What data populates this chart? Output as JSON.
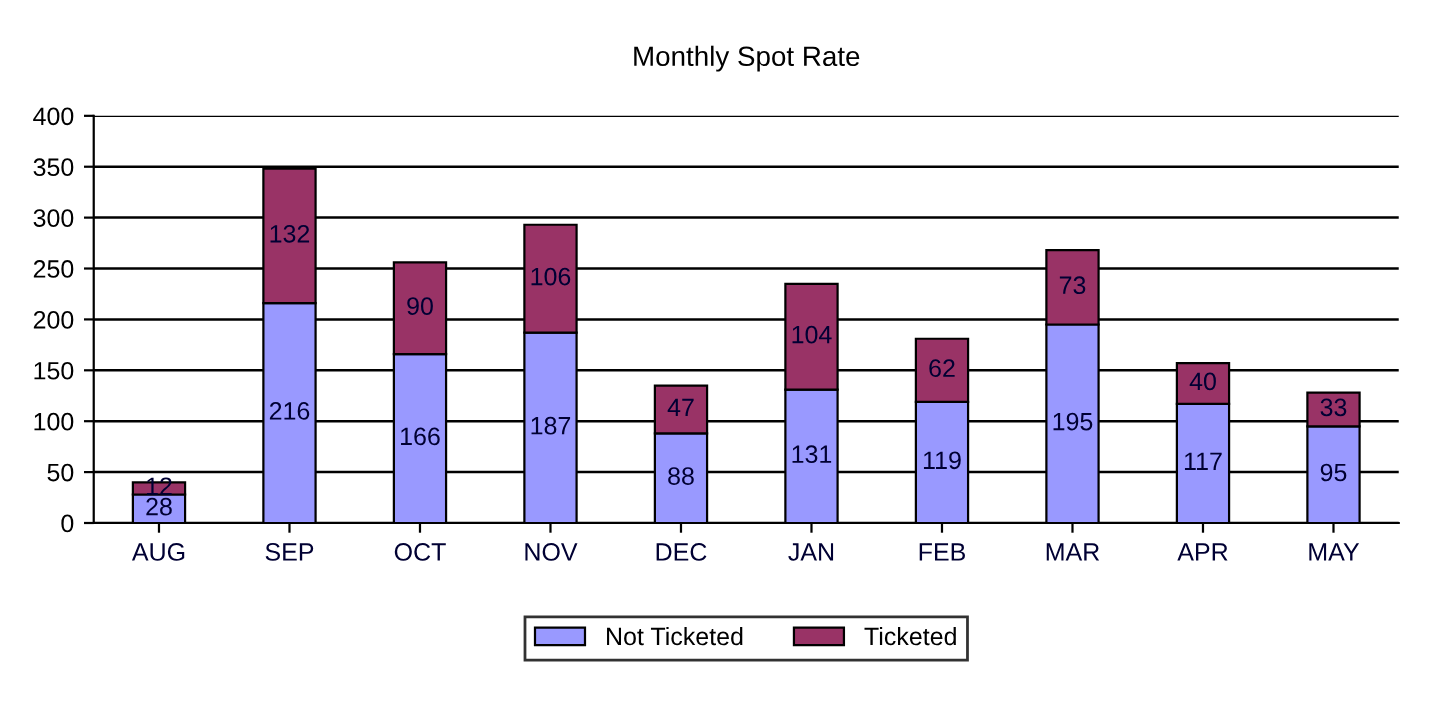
{
  "chart_data": {
    "type": "bar",
    "title": "Monthly Spot Rate",
    "categories": [
      "AUG",
      "SEP",
      "OCT",
      "NOV",
      "DEC",
      "JAN",
      "FEB",
      "MAR",
      "APR",
      "MAY"
    ],
    "stacked": true,
    "series": [
      {
        "name": "Not Ticketed",
        "color": "#9999ff",
        "values": [
          28,
          216,
          166,
          187,
          88,
          131,
          119,
          195,
          117,
          95
        ]
      },
      {
        "name": "Ticketed",
        "color": "#993366",
        "values": [
          12,
          132,
          90,
          106,
          47,
          104,
          62,
          73,
          40,
          33
        ]
      }
    ],
    "ylim": [
      0,
      400
    ],
    "yticks": [
      0,
      50,
      100,
      150,
      200,
      250,
      300,
      350,
      400
    ],
    "grid": "y",
    "legend": "bottom",
    "data_labels": true
  }
}
